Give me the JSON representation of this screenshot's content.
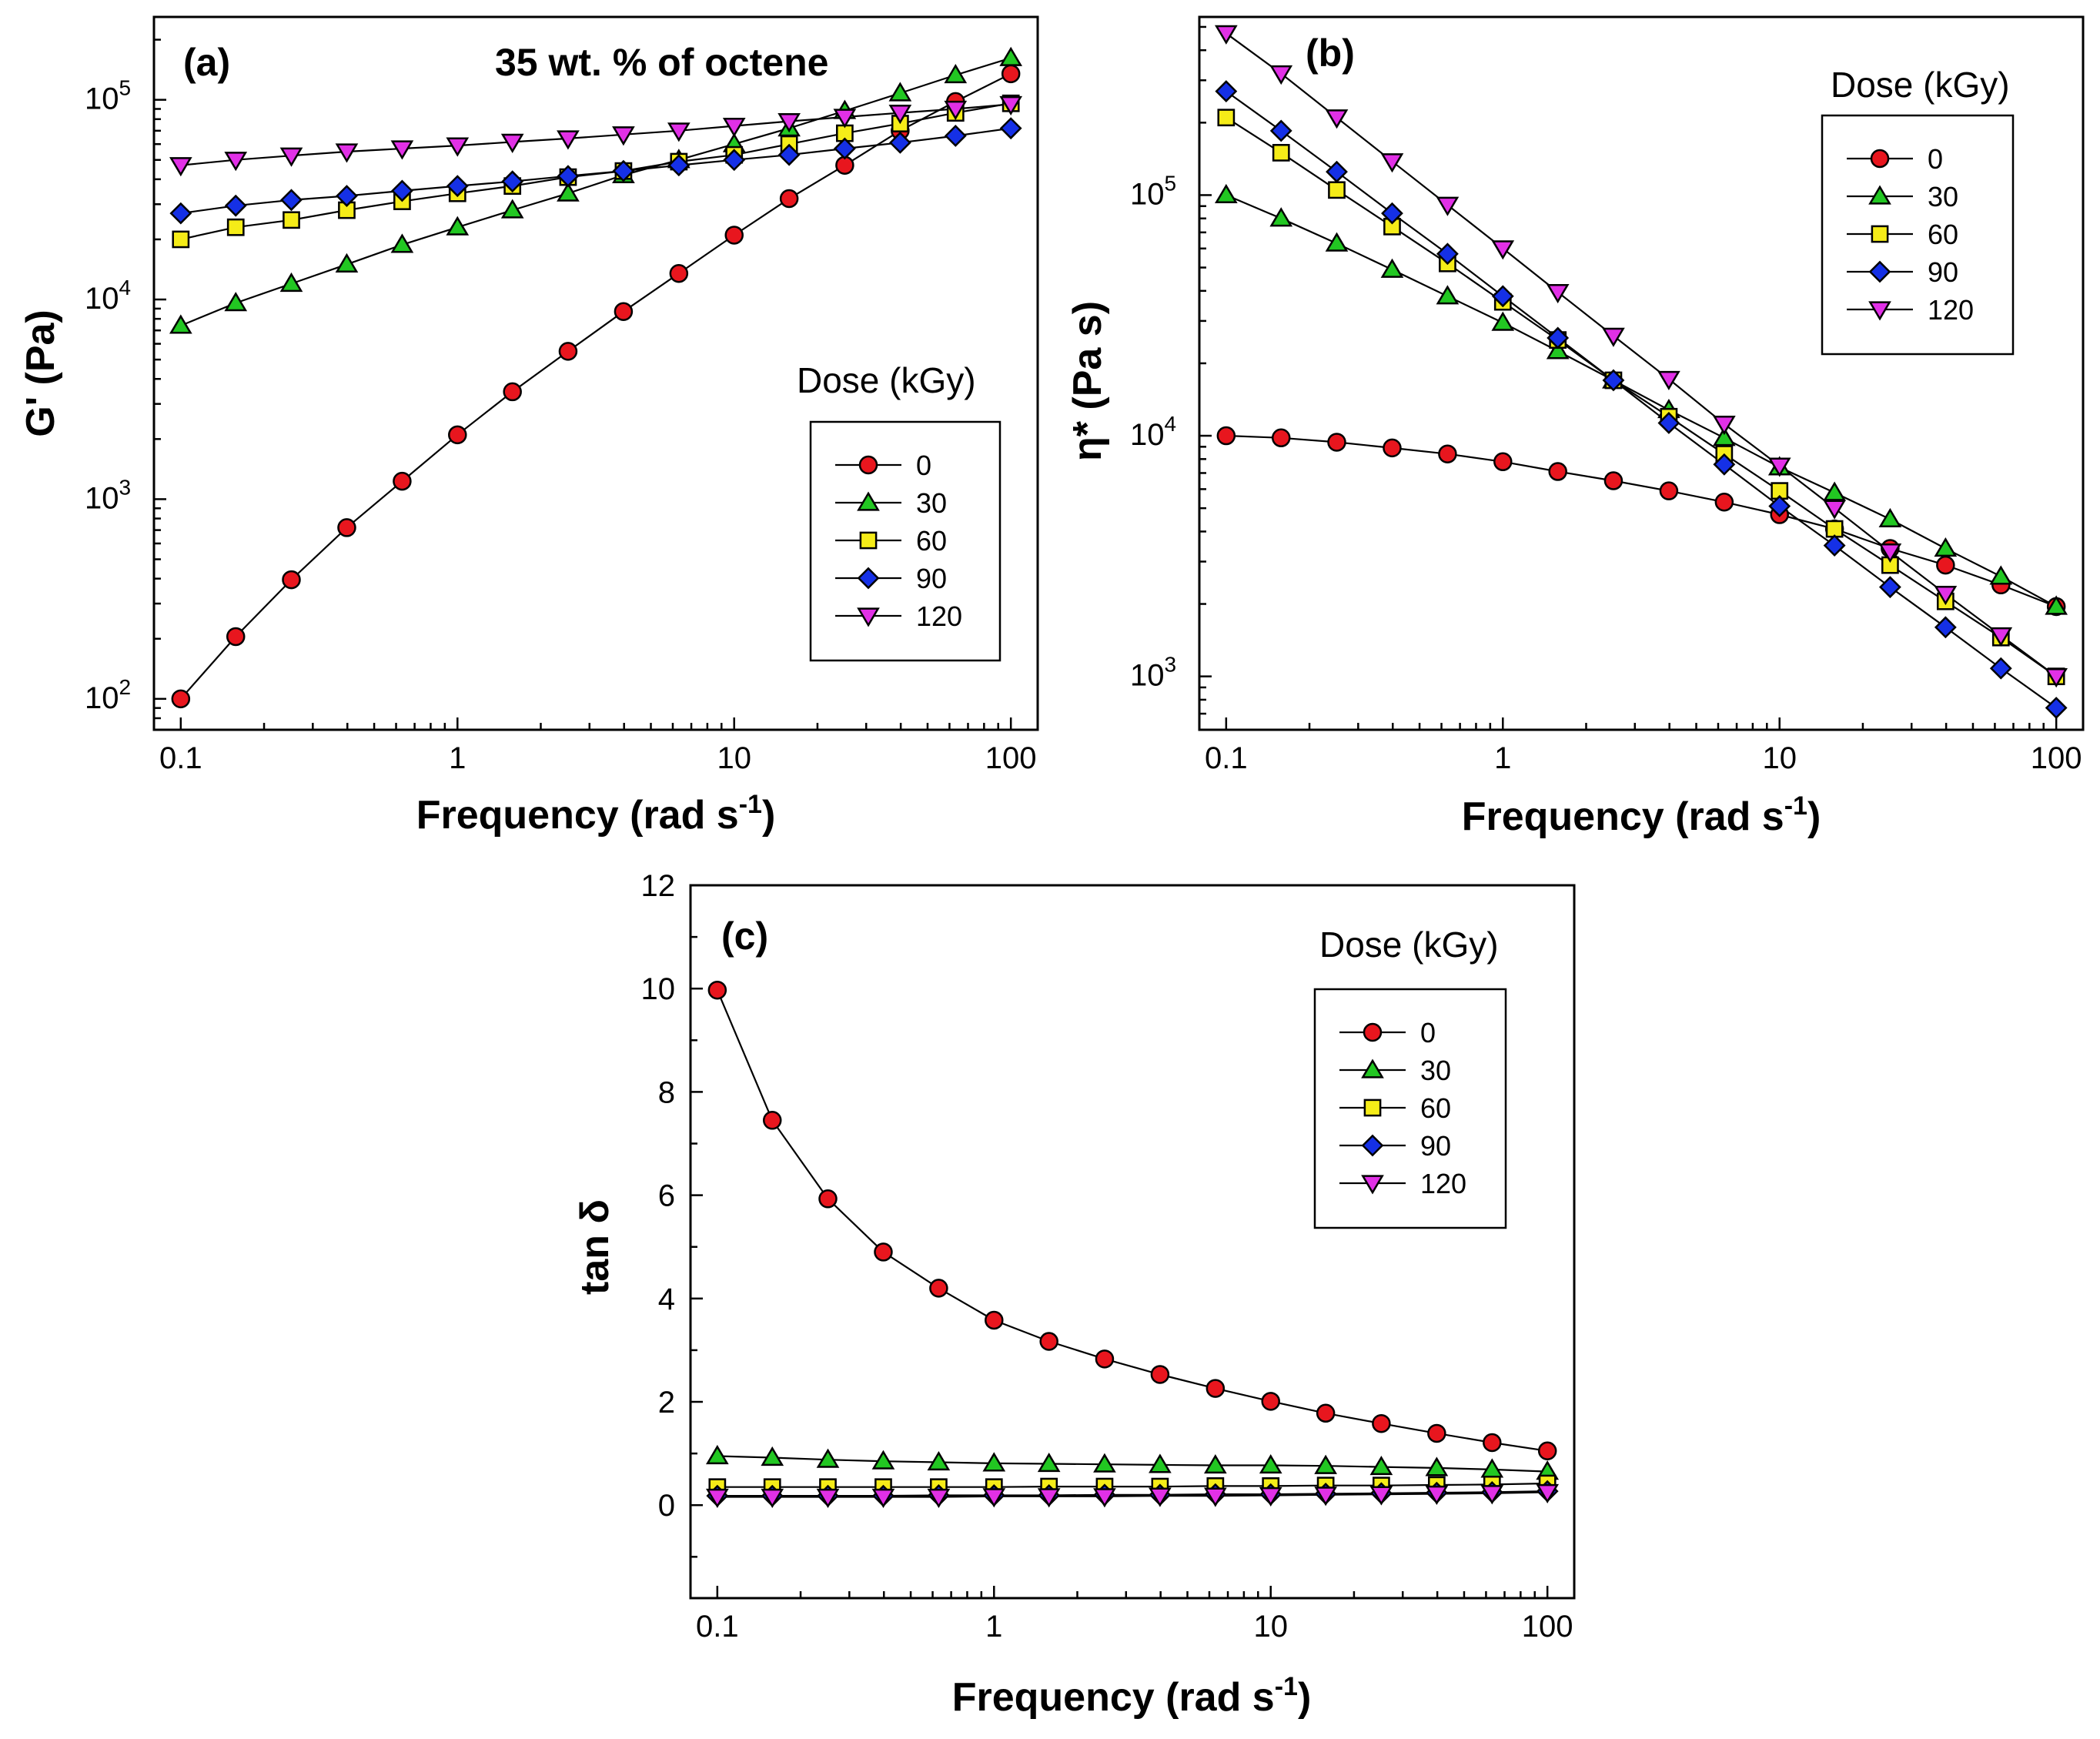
{
  "colors": {
    "0": "#e8161e",
    "30": "#22c722",
    "60": "#f5ec18",
    "90": "#1530e6",
    "120": "#e130e6"
  },
  "markers": {
    "0": "circle",
    "30": "triangle-up",
    "60": "square",
    "90": "diamond",
    "120": "triangle-down"
  },
  "chart_data": [
    {
      "id": "a",
      "type": "line",
      "panel_label": "(a)",
      "annotation": "35 wt. % of octene",
      "xlabel": "Frequency (rad s",
      "xlabel_sup": "-1",
      "xlabel_end": ")",
      "ylabel": "G' (Pa)",
      "xscale": "log",
      "yscale": "log",
      "xlim": [
        0.08,
        125
      ],
      "ylim": [
        70,
        260000
      ],
      "xticks": [
        {
          "v": 0.1,
          "label": "0.1"
        },
        {
          "v": 1,
          "label": "1"
        },
        {
          "v": 10,
          "label": "10"
        },
        {
          "v": 100,
          "label": "100"
        }
      ],
      "yticks": [
        {
          "v": 100,
          "base": "10",
          "exp": "2"
        },
        {
          "v": 1000,
          "base": "10",
          "exp": "3"
        },
        {
          "v": 10000,
          "base": "10",
          "exp": "4"
        },
        {
          "v": 100000,
          "base": "10",
          "exp": "5"
        }
      ],
      "legend_title": "Dose (kGy)",
      "legend_position": "right-middle",
      "x": [
        0.1,
        0.158,
        0.251,
        0.398,
        0.631,
        1,
        1.58,
        2.51,
        3.98,
        6.31,
        10,
        15.8,
        25.1,
        39.8,
        63.1,
        100
      ],
      "series": [
        {
          "name": "0",
          "values": [
            100,
            205,
            395,
            720,
            1230,
            2100,
            3450,
            5500,
            8700,
            13500,
            21000,
            32000,
            47000,
            70000,
            98000,
            135000
          ]
        },
        {
          "name": "30",
          "values": [
            7400,
            9600,
            12000,
            15000,
            18800,
            23000,
            28000,
            34000,
            42000,
            50000,
            60000,
            72000,
            88000,
            108000,
            133000,
            162000
          ]
        },
        {
          "name": "60",
          "values": [
            20000,
            23000,
            25000,
            28000,
            31000,
            34000,
            37000,
            41000,
            44000,
            49000,
            53000,
            60000,
            68000,
            76000,
            86000,
            96000
          ]
        },
        {
          "name": "90",
          "values": [
            27000,
            29500,
            31500,
            33000,
            35000,
            37000,
            39000,
            41500,
            44000,
            47000,
            50000,
            53000,
            57000,
            61000,
            66000,
            72000
          ]
        },
        {
          "name": "120",
          "values": [
            47000,
            50000,
            52500,
            55000,
            57000,
            59000,
            61500,
            64000,
            67000,
            70000,
            74000,
            78000,
            82000,
            86000,
            90000,
            95000
          ]
        }
      ]
    },
    {
      "id": "b",
      "type": "line",
      "panel_label": "(b)",
      "xlabel": "Frequency (rad s",
      "xlabel_sup": "-1",
      "xlabel_end": ")",
      "ylabel": "η* (Pa s)",
      "xscale": "log",
      "yscale": "log",
      "xlim": [
        0.08,
        125
      ],
      "ylim": [
        600,
        550000
      ],
      "xticks": [
        {
          "v": 0.1,
          "label": "0.1"
        },
        {
          "v": 1,
          "label": "1"
        },
        {
          "v": 10,
          "label": "10"
        },
        {
          "v": 100,
          "label": "100"
        }
      ],
      "yticks": [
        {
          "v": 1000,
          "base": "10",
          "exp": "3"
        },
        {
          "v": 10000,
          "base": "10",
          "exp": "4"
        },
        {
          "v": 100000,
          "base": "10",
          "exp": "5"
        }
      ],
      "legend_title": "Dose (kGy)",
      "legend_position": "top-right",
      "x": [
        0.1,
        0.158,
        0.251,
        0.398,
        0.631,
        1,
        1.58,
        2.51,
        3.98,
        6.31,
        10,
        15.8,
        25.1,
        39.8,
        63.1,
        100
      ],
      "series": [
        {
          "name": "0",
          "values": [
            10000,
            9800,
            9400,
            8900,
            8400,
            7800,
            7100,
            6500,
            5900,
            5300,
            4700,
            4100,
            3400,
            2900,
            2400,
            1950
          ]
        },
        {
          "name": "30",
          "values": [
            100000,
            80000,
            63000,
            49000,
            38000,
            29500,
            22500,
            17000,
            12800,
            9800,
            7400,
            5800,
            4500,
            3400,
            2600,
            1950
          ]
        },
        {
          "name": "60",
          "values": [
            210000,
            150000,
            105000,
            74000,
            52000,
            36000,
            25000,
            17000,
            12000,
            8400,
            5900,
            4100,
            2900,
            2050,
            1450,
            1000
          ]
        },
        {
          "name": "90",
          "values": [
            270000,
            185000,
            125000,
            84000,
            57000,
            38000,
            25500,
            17000,
            11300,
            7600,
            5100,
            3500,
            2350,
            1600,
            1080,
            740
          ]
        },
        {
          "name": "120",
          "values": [
            470000,
            320000,
            210000,
            138000,
            91000,
            60000,
            39500,
            26000,
            17200,
            11200,
            7500,
            5000,
            3300,
            2200,
            1480,
            1000
          ]
        }
      ]
    },
    {
      "id": "c",
      "type": "line",
      "panel_label": "(c)",
      "xlabel": "Frequency (rad s",
      "xlabel_sup": "-1",
      "xlabel_end": ")",
      "ylabel": "tan δ",
      "xscale": "log",
      "yscale": "linear",
      "xlim": [
        0.08,
        125
      ],
      "ylim": [
        -1.8,
        12
      ],
      "xticks": [
        {
          "v": 0.1,
          "label": "0.1"
        },
        {
          "v": 1,
          "label": "1"
        },
        {
          "v": 10,
          "label": "10"
        },
        {
          "v": 100,
          "label": "100"
        }
      ],
      "yticks": [
        {
          "v": 0,
          "label": "0"
        },
        {
          "v": 2,
          "label": "2"
        },
        {
          "v": 4,
          "label": "4"
        },
        {
          "v": 6,
          "label": "6"
        },
        {
          "v": 8,
          "label": "8"
        },
        {
          "v": 10,
          "label": "10"
        },
        {
          "v": 12,
          "label": "12"
        }
      ],
      "legend_title": "Dose (kGy)",
      "legend_position": "top-right",
      "x": [
        0.1,
        0.158,
        0.251,
        0.398,
        0.631,
        1,
        1.58,
        2.51,
        3.98,
        6.31,
        10,
        15.8,
        25.1,
        39.8,
        63.1,
        100
      ],
      "series": [
        {
          "name": "0",
          "values": [
            9.97,
            7.45,
            5.93,
            4.9,
            4.2,
            3.58,
            3.17,
            2.83,
            2.53,
            2.26,
            2.01,
            1.78,
            1.58,
            1.39,
            1.21,
            1.05
          ]
        },
        {
          "name": "30",
          "values": [
            0.95,
            0.92,
            0.88,
            0.85,
            0.83,
            0.81,
            0.8,
            0.79,
            0.78,
            0.77,
            0.77,
            0.76,
            0.74,
            0.72,
            0.69,
            0.65
          ]
        },
        {
          "name": "60",
          "values": [
            0.35,
            0.35,
            0.35,
            0.35,
            0.35,
            0.35,
            0.36,
            0.36,
            0.36,
            0.37,
            0.37,
            0.38,
            0.38,
            0.39,
            0.4,
            0.42
          ]
        },
        {
          "name": "90",
          "values": [
            0.18,
            0.18,
            0.18,
            0.18,
            0.19,
            0.19,
            0.19,
            0.2,
            0.2,
            0.21,
            0.21,
            0.22,
            0.23,
            0.24,
            0.25,
            0.27
          ]
        },
        {
          "name": "120",
          "values": [
            0.16,
            0.16,
            0.16,
            0.16,
            0.16,
            0.17,
            0.17,
            0.17,
            0.18,
            0.18,
            0.19,
            0.2,
            0.21,
            0.22,
            0.23,
            0.25
          ]
        }
      ]
    }
  ]
}
